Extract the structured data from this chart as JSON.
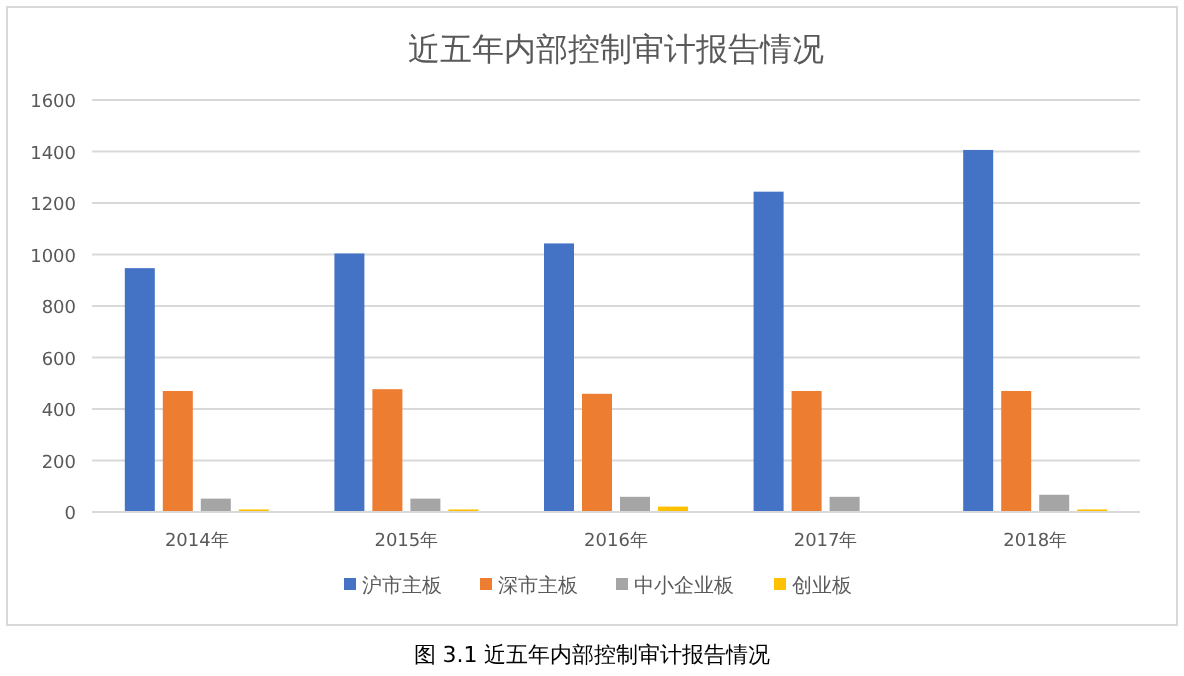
{
  "chart_data": {
    "type": "bar",
    "title": "近五年内部控制审计报告情况",
    "categories": [
      "2014年",
      "2015年",
      "2016年",
      "2017年",
      "2018年"
    ],
    "series": [
      {
        "name": "沪市主板",
        "color": "#4472c4",
        "values": [
          947,
          1004,
          1043,
          1244,
          1406
        ]
      },
      {
        "name": "深市主板",
        "color": "#ed7d31",
        "values": [
          470,
          477,
          459,
          470,
          470
        ]
      },
      {
        "name": "中小企业板",
        "color": "#a5a5a5",
        "values": [
          52,
          52,
          59,
          59,
          67
        ]
      },
      {
        "name": "创业板",
        "color": "#ffc000",
        "values": [
          10,
          10,
          21,
          0,
          10
        ]
      }
    ],
    "ylim": [
      0,
      1600
    ],
    "yticks": [
      0,
      200,
      400,
      600,
      800,
      1000,
      1200,
      1400,
      1600
    ],
    "grid": "y",
    "legend": "bottom",
    "annotations": [
      "图 3.1  近五年内部控制审计报告情况"
    ]
  }
}
